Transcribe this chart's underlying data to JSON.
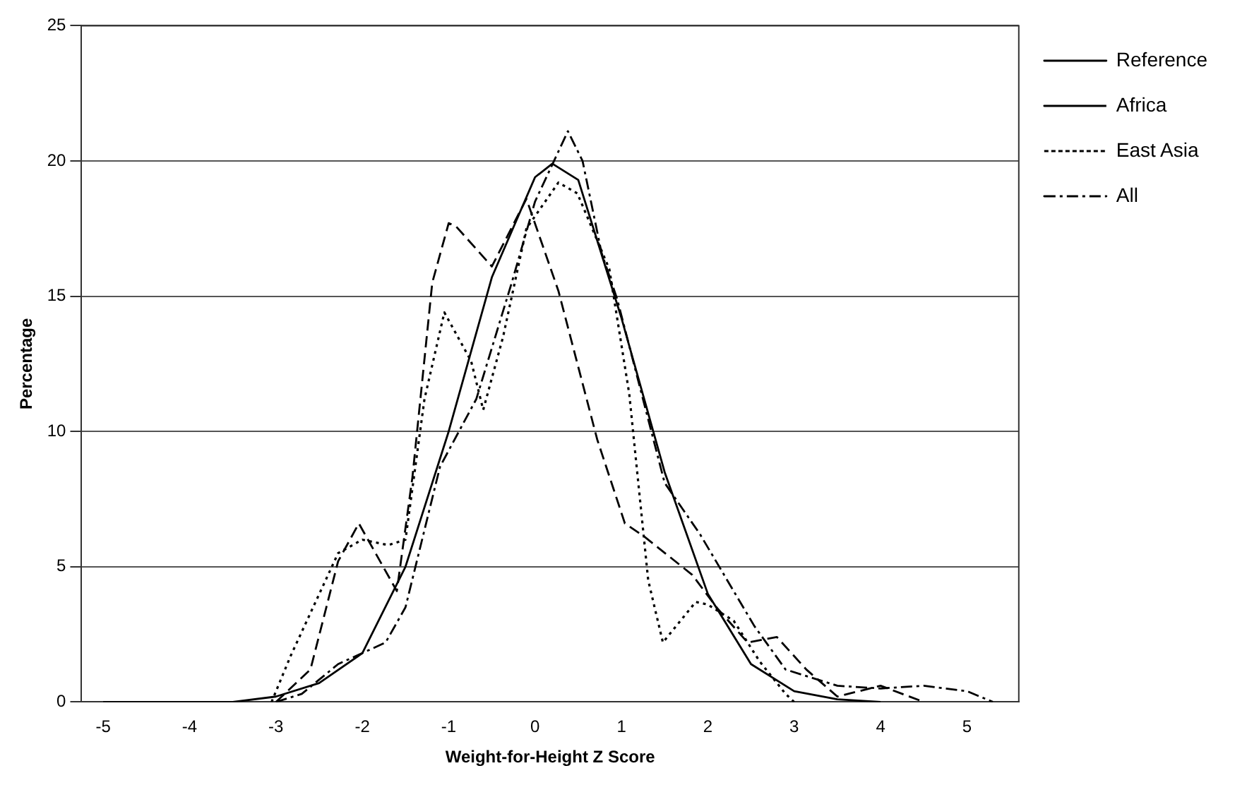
{
  "chart_data": {
    "type": "line",
    "xlabel": "Weight-for-Height Z Score",
    "ylabel": "Percentage",
    "xlim": [
      -5.25,
      5.6
    ],
    "xticks": [
      -5,
      -4,
      -3,
      -2,
      -1,
      0,
      1,
      2,
      3,
      4,
      5
    ],
    "ylim": [
      0,
      25
    ],
    "yticks": [
      0,
      5,
      10,
      15,
      20,
      25
    ],
    "grid": "y",
    "legend": "top right",
    "marker": "none",
    "series": [
      {
        "name": "Reference",
        "color": "#000000",
        "line_style": "solid",
        "x": [
          -5,
          -3.5,
          -3,
          -2.5,
          -2,
          -1.5,
          -1,
          -0.5,
          0,
          0.2,
          0.5,
          1,
          1.5,
          2,
          2.5,
          3,
          3.5,
          4
        ],
        "values": [
          0,
          0,
          0.2,
          0.7,
          1.8,
          5.0,
          10,
          15.7,
          19.4,
          19.9,
          19.3,
          14.2,
          8.5,
          4.0,
          1.4,
          0.4,
          0.1,
          0
        ]
      },
      {
        "name": "Africa",
        "color": "#000000",
        "line_style": "dashed",
        "x": [
          -3,
          -2.6,
          -2.28,
          -2.04,
          -1.6,
          -1.42,
          -1.19,
          -1.0,
          -0.92,
          -0.5,
          -0.1,
          0.27,
          0.72,
          1.04,
          1.27,
          1.82,
          2.1,
          2.46,
          2.8,
          3.14,
          3.5,
          4.0,
          4.5
        ],
        "values": [
          0,
          1.2,
          5.2,
          6.6,
          4.1,
          8.3,
          15.5,
          17.7,
          17.6,
          16.1,
          18.6,
          15.2,
          9.7,
          6.6,
          6.1,
          4.7,
          3.5,
          2.2,
          2.4,
          1.2,
          0.2,
          0.6,
          0
        ]
      },
      {
        "name": "East Asia",
        "color": "#000000",
        "line_style": "dotted",
        "x": [
          -3.05,
          -2.83,
          -2.28,
          -2.0,
          -1.7,
          -1.5,
          -1.28,
          -1.05,
          -0.74,
          -0.6,
          -0.37,
          -0.1,
          0.27,
          0.49,
          0.86,
          1.09,
          1.31,
          1.48,
          1.86,
          2.0,
          2.3,
          2.6,
          2.9,
          3.0
        ],
        "values": [
          0,
          1.7,
          5.5,
          6.0,
          5.8,
          6.0,
          11.2,
          14.4,
          12.6,
          10.8,
          13.5,
          17.5,
          19.2,
          18.8,
          16,
          11.4,
          4.5,
          2.2,
          3.7,
          3.6,
          3.0,
          1.5,
          0.3,
          0
        ]
      },
      {
        "name": "All",
        "color": "#000000",
        "line_style": "dashdot",
        "x": [
          -3,
          -2.7,
          -2.28,
          -1.73,
          -1.5,
          -1.1,
          -0.68,
          -0.27,
          0,
          0.38,
          0.55,
          0.77,
          0.95,
          1.5,
          1.91,
          2.54,
          2.9,
          3.5,
          4.0,
          4.5,
          5.0,
          5.3
        ],
        "values": [
          0,
          0.3,
          1.4,
          2.2,
          3.5,
          8.7,
          11.2,
          15.5,
          18.5,
          21.1,
          20,
          16.6,
          14.9,
          8.1,
          6.2,
          2.8,
          1.2,
          0.6,
          0.5,
          0.6,
          0.4,
          0
        ]
      }
    ]
  }
}
